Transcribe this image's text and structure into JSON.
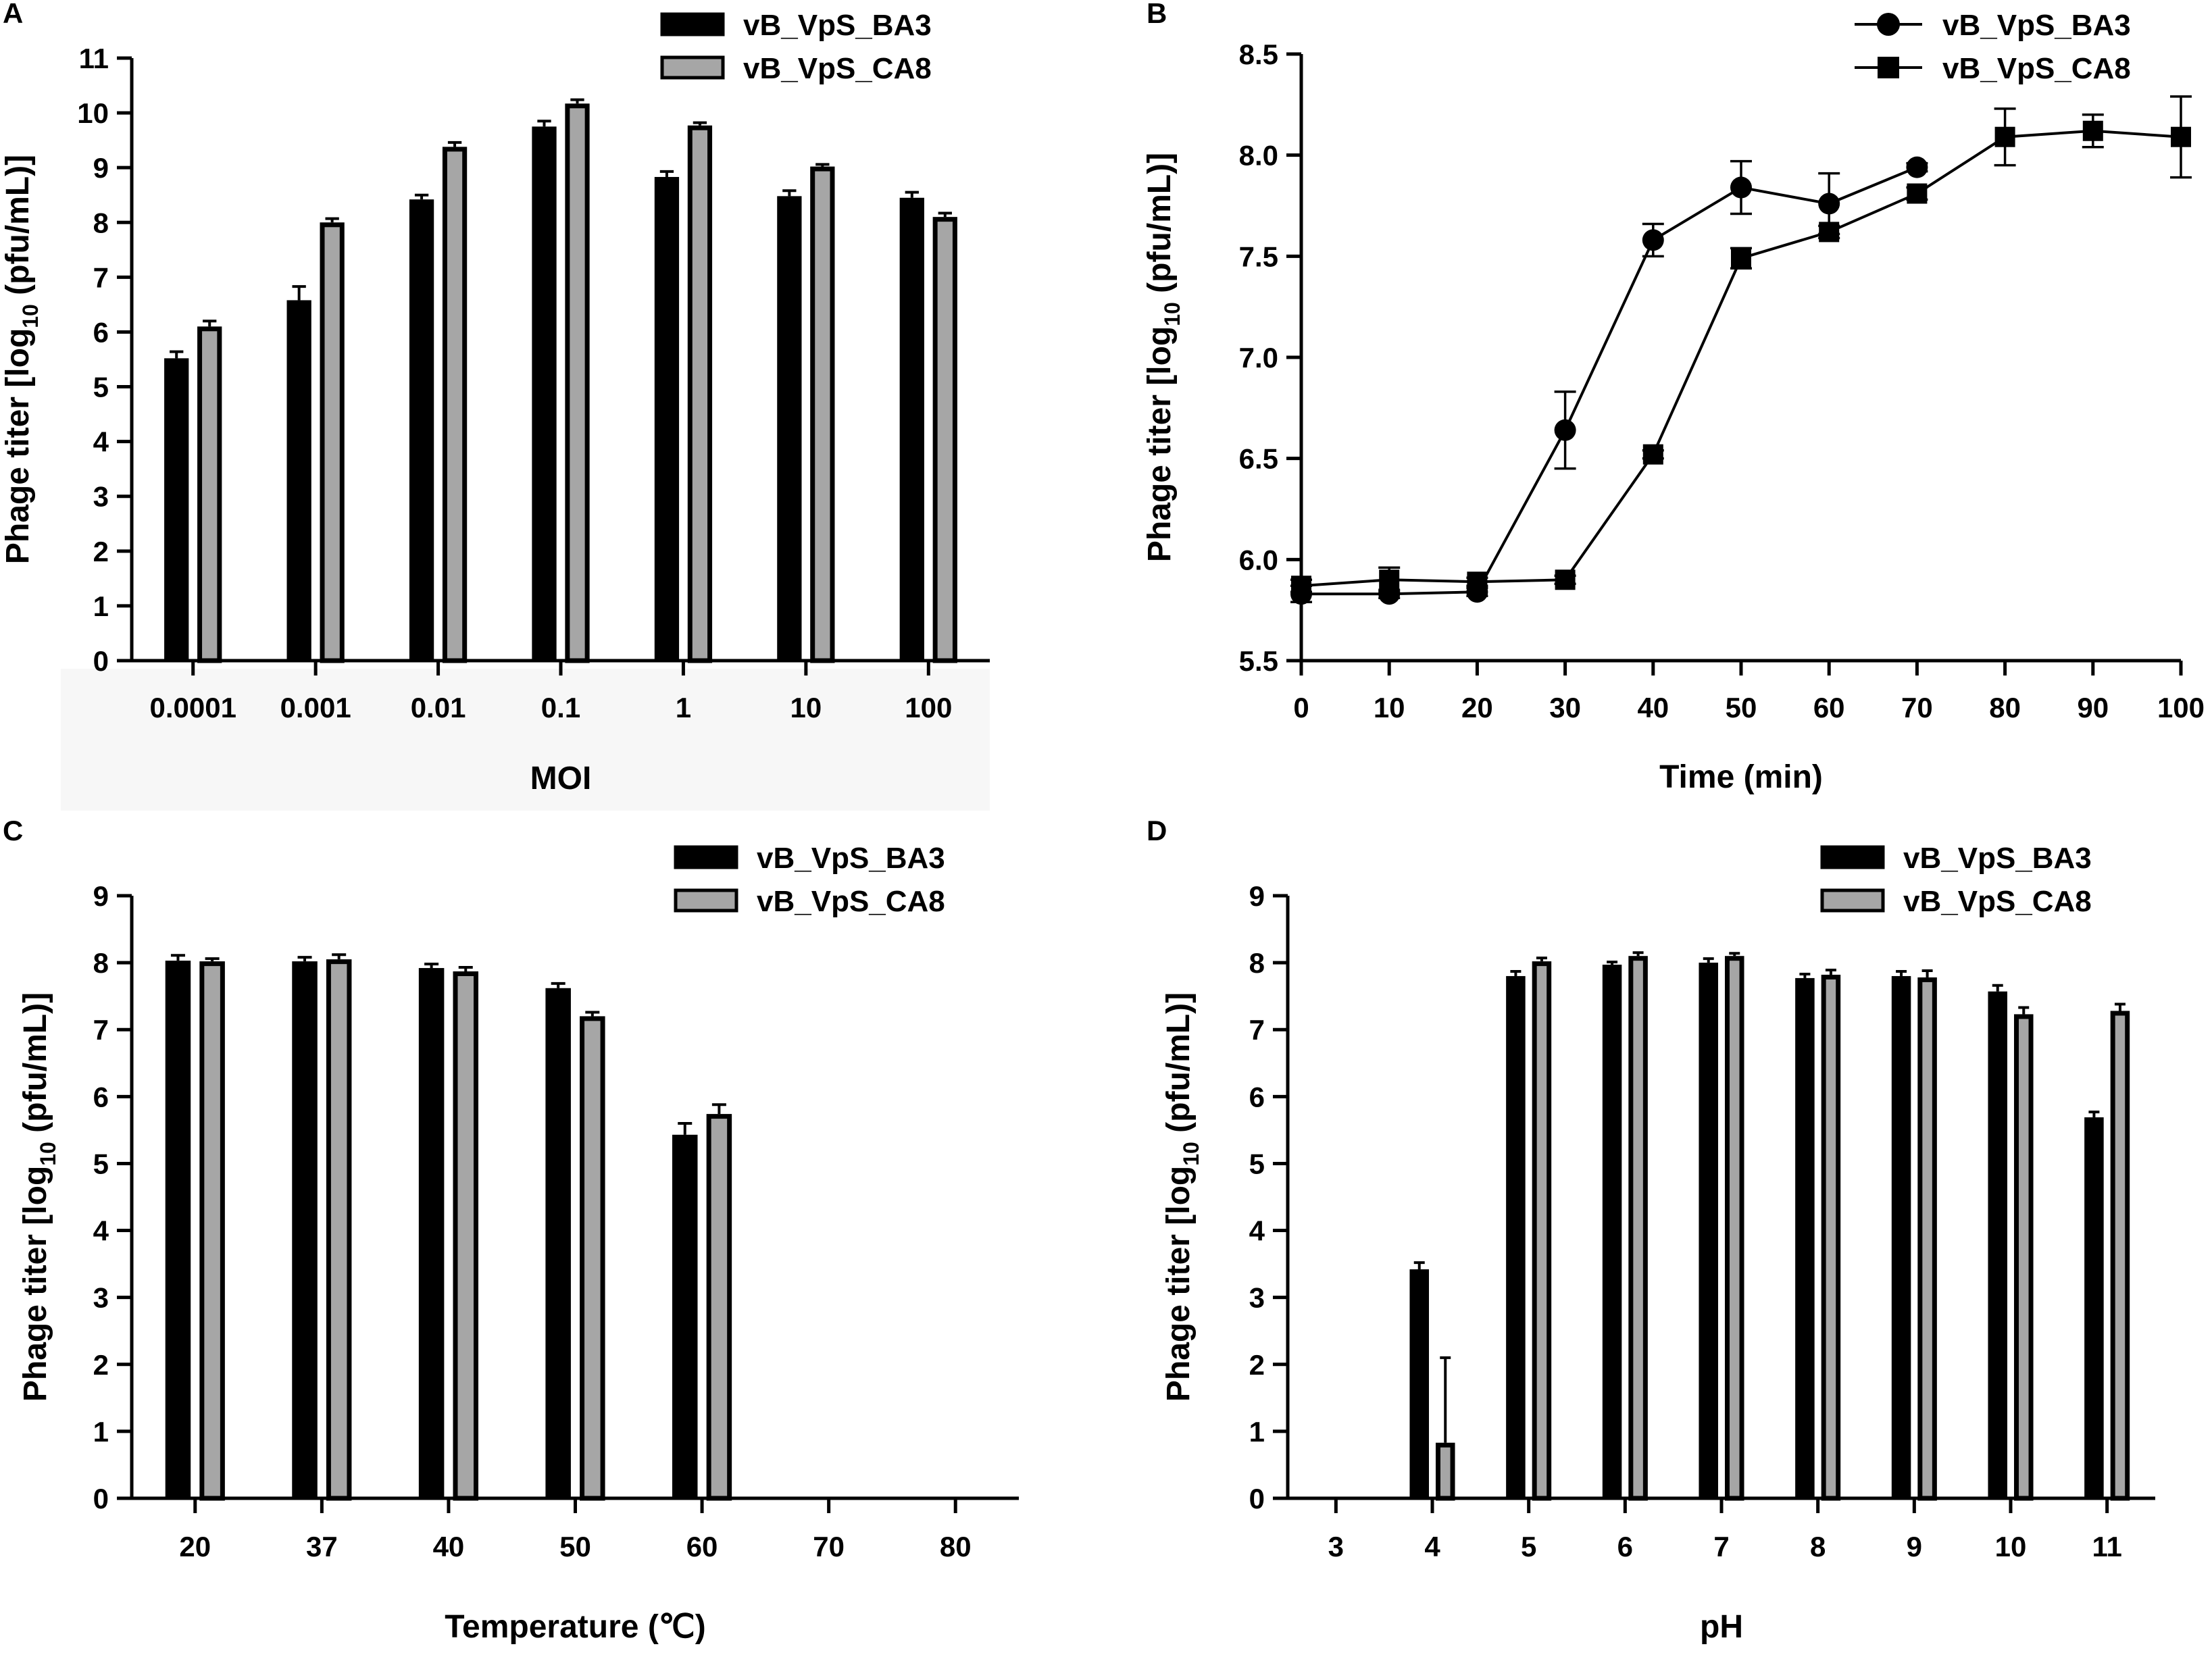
{
  "colors": {
    "series1": "#000000",
    "series2": "#a6a6a6",
    "axis": "#000000",
    "xlabel_band": "#f7f7f7"
  },
  "chart_data": [
    {
      "panel": "A",
      "type": "bar",
      "categories": [
        "0.0001",
        "0.001",
        "0.01",
        "0.1",
        "1",
        "10",
        "100"
      ],
      "series": [
        {
          "name": "vB_VpS_BA3",
          "values": [
            5.52,
            6.58,
            8.42,
            9.75,
            8.83,
            8.48,
            8.45
          ],
          "errors": [
            0.12,
            0.25,
            0.08,
            0.1,
            0.1,
            0.1,
            0.1
          ]
        },
        {
          "name": "vB_VpS_CA8",
          "values": [
            6.1,
            8.0,
            9.38,
            10.17,
            9.77,
            9.02,
            8.1
          ],
          "errors": [
            0.1,
            0.07,
            0.08,
            0.07,
            0.05,
            0.04,
            0.07
          ]
        }
      ],
      "ylabel_pre": "Phage titer [log",
      "ylabel_sub": "10",
      "ylabel_post": " (pfu/mL)]",
      "xlabel": "MOI",
      "ylim": [
        0,
        11
      ],
      "yticks": [
        "0",
        "1",
        "2",
        "3",
        "4",
        "5",
        "6",
        "7",
        "8",
        "9",
        "10",
        "11"
      ],
      "legend": "top-right"
    },
    {
      "panel": "B",
      "type": "line",
      "series": [
        {
          "name": "vB_VpS_BA3",
          "marker": "circle",
          "x": [
            0,
            10,
            20,
            30,
            40,
            50,
            60,
            70
          ],
          "y": [
            5.83,
            5.83,
            5.84,
            6.64,
            7.58,
            7.84,
            7.76,
            7.94
          ],
          "errors": [
            0.04,
            0.02,
            0.02,
            0.19,
            0.08,
            0.13,
            0.15,
            0.02
          ]
        },
        {
          "name": "vB_VpS_CA8",
          "marker": "square",
          "x": [
            0,
            10,
            20,
            30,
            40,
            50,
            60,
            70,
            80,
            90,
            100
          ],
          "y": [
            5.87,
            5.9,
            5.89,
            5.9,
            6.52,
            7.49,
            7.62,
            7.81,
            8.09,
            8.12,
            8.09
          ],
          "errors": [
            0.03,
            0.06,
            0.02,
            0.02,
            0.02,
            0.05,
            0.03,
            0.03,
            0.14,
            0.08,
            0.2
          ]
        }
      ],
      "ylabel_pre": "Phage titer [log",
      "ylabel_sub": "10",
      "ylabel_post": " (pfu/mL)]",
      "xlabel": "Time (min)",
      "xlim": [
        0,
        100
      ],
      "ylim": [
        5.5,
        8.5
      ],
      "xticks": [
        "0",
        "10",
        "20",
        "30",
        "40",
        "50",
        "60",
        "70",
        "80",
        "90",
        "100"
      ],
      "yticks": [
        "5.5",
        "6.0",
        "6.5",
        "7.0",
        "7.5",
        "8.0",
        "8.5"
      ],
      "legend": "top-right"
    },
    {
      "panel": "C",
      "type": "bar",
      "categories": [
        "20",
        "37",
        "40",
        "50",
        "60",
        "70",
        "80"
      ],
      "series": [
        {
          "name": "vB_VpS_BA3",
          "values": [
            8.03,
            8.02,
            7.92,
            7.62,
            5.43,
            0,
            0
          ],
          "errors": [
            0.08,
            0.06,
            0.06,
            0.07,
            0.17,
            0,
            0
          ]
        },
        {
          "name": "vB_VpS_CA8",
          "values": [
            8.02,
            8.05,
            7.87,
            7.2,
            5.74,
            0,
            0
          ],
          "errors": [
            0.04,
            0.07,
            0.06,
            0.06,
            0.14,
            0,
            0
          ]
        }
      ],
      "ylabel_pre": "Phage titer [log",
      "ylabel_sub": "10",
      "ylabel_post": " (pfu/mL)]",
      "xlabel": "Temperature (℃)",
      "ylim": [
        0,
        9
      ],
      "yticks": [
        "0",
        "1",
        "2",
        "3",
        "4",
        "5",
        "6",
        "7",
        "8",
        "9"
      ],
      "legend": "top-right"
    },
    {
      "panel": "D",
      "type": "bar",
      "categories": [
        "3",
        "4",
        "5",
        "6",
        "7",
        "8",
        "9",
        "10",
        "11"
      ],
      "series": [
        {
          "name": "vB_VpS_BA3",
          "values": [
            0,
            3.42,
            7.8,
            7.97,
            8.0,
            7.77,
            7.8,
            7.57,
            5.69
          ],
          "errors": [
            0,
            0.1,
            0.07,
            0.04,
            0.06,
            0.06,
            0.07,
            0.09,
            0.08
          ]
        },
        {
          "name": "vB_VpS_CA8",
          "values": [
            0,
            0.83,
            8.02,
            8.1,
            8.1,
            7.82,
            7.78,
            7.23,
            7.28
          ],
          "errors": [
            0,
            1.27,
            0.05,
            0.05,
            0.04,
            0.07,
            0.1,
            0.1,
            0.1
          ]
        }
      ],
      "ylabel_pre": "Phage titer [log",
      "ylabel_sub": "10",
      "ylabel_post": " (pfu/mL)]",
      "xlabel": "pH",
      "ylim": [
        0,
        9
      ],
      "yticks": [
        "0",
        "1",
        "2",
        "3",
        "4",
        "5",
        "6",
        "7",
        "8",
        "9"
      ],
      "legend": "top-right"
    }
  ]
}
